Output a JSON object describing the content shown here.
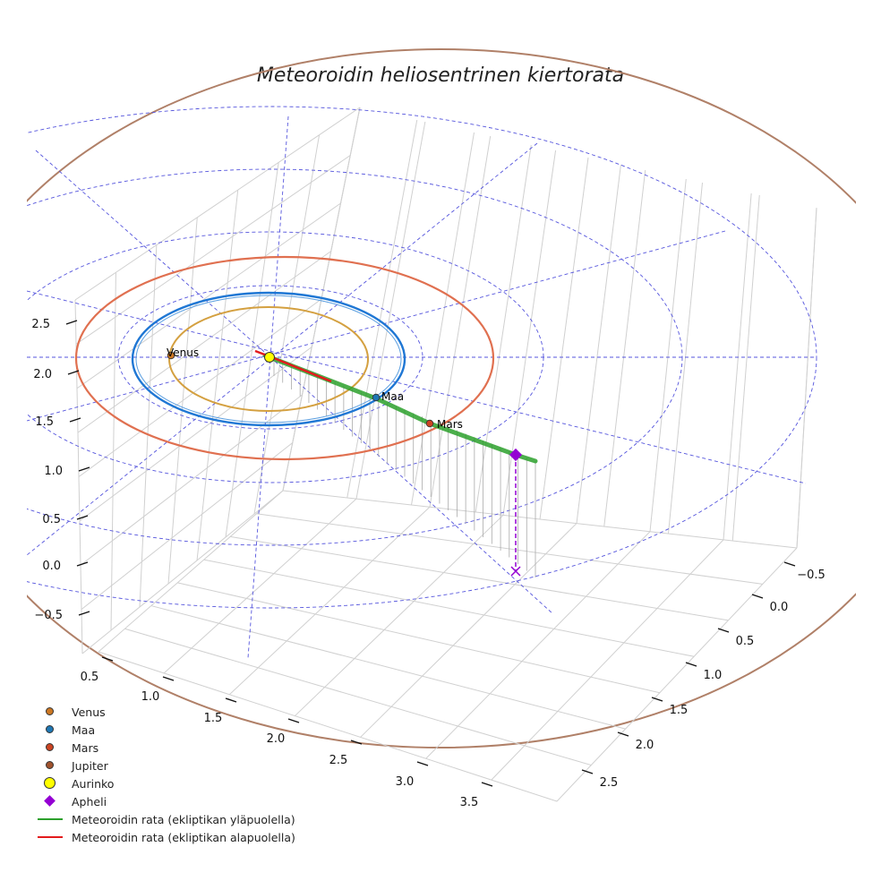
{
  "chart_data": {
    "type": "line",
    "title": "Meteoroidin heliosentrinen kiertorata",
    "axes": {
      "x_ticks": [
        "0.5",
        "1.0",
        "1.5",
        "2.0",
        "2.5",
        "3.0",
        "3.5"
      ],
      "y_ticks": [
        "−0.5",
        "0.0",
        "0.5",
        "1.0",
        "1.5",
        "2.0",
        "2.5"
      ],
      "z_ticks": [
        "−0.5",
        "0.0",
        "0.5",
        "1.0",
        "1.5",
        "2.0",
        "2.5"
      ],
      "grid": true
    },
    "bodies": [
      {
        "name": "Venus",
        "orbit_radius_au": 0.72,
        "color": "#d4a040"
      },
      {
        "name": "Maa",
        "orbit_radius_au": 1.0,
        "color": "#1f77d4"
      },
      {
        "name": "Mars",
        "orbit_radius_au": 1.52,
        "color": "#e06030"
      },
      {
        "name": "Jupiter",
        "orbit_radius_au": 5.2,
        "color": "#b08060"
      }
    ],
    "sun": {
      "name": "Aurinko",
      "x": 0,
      "y": 0,
      "z": 0
    },
    "aphelion": {
      "name": "Apheli",
      "distance_au": 2.0
    },
    "series": [
      {
        "name": "Meteoroidin rata (ekliptikan yläpuolella)",
        "color": "#2ca02c"
      },
      {
        "name": "Meteoroidin rata (ekliptikan alapuolella)",
        "color": "#e31a1c"
      }
    ],
    "legend_position": "bottom-left"
  },
  "labels": {
    "venus": "Venus",
    "maa": "Maa",
    "mars": "Mars"
  },
  "legend": [
    {
      "label": "Venus",
      "symbol": "dot",
      "color": "#cc7722"
    },
    {
      "label": "Maa",
      "symbol": "dot",
      "color": "#1f77b4"
    },
    {
      "label": "Mars",
      "symbol": "dot",
      "color": "#cc4422"
    },
    {
      "label": "Jupiter",
      "symbol": "dot",
      "color": "#a0522d"
    },
    {
      "label": "Aurinko",
      "symbol": "sun",
      "color": "#ffff00"
    },
    {
      "label": "Apheli",
      "symbol": "diamond",
      "color": "#9400d3"
    },
    {
      "label": "Meteoroidin rata (ekliptikan yläpuolella)",
      "symbol": "line",
      "color": "#2ca02c"
    },
    {
      "label": "Meteoroidin rata (ekliptikan alapuolella)",
      "symbol": "line",
      "color": "#e31a1c"
    }
  ]
}
